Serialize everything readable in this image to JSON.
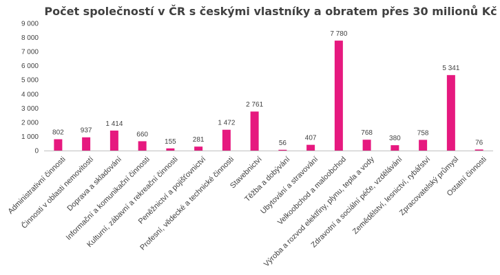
{
  "chart_data": {
    "type": "bar",
    "title": "Počet společností v ČR s českými vlastníky a obratem přes 30 milionů Kč",
    "xlabel": "",
    "ylabel": "",
    "ylim": [
      0,
      9000
    ],
    "yticks": [
      0,
      1000,
      2000,
      3000,
      4000,
      5000,
      6000,
      7000,
      8000,
      9000
    ],
    "ytick_labels": [
      "0",
      "1 000",
      "2 000",
      "3 000",
      "4 000",
      "5 000",
      "6 000",
      "7 000",
      "8 000",
      "9 000"
    ],
    "grid": false,
    "bar_color": "#e6197f",
    "categories": [
      "Administrativní činnosti",
      "Činnosti v oblasti nemovitostí",
      "Doprava a skladování",
      "Informační a komunikační činnosti",
      "Kulturní, zábavní a rekreační činnosti",
      "Peněžnictví a pojišťovnictví",
      "Profesní, vědecké a technické činnosti",
      "Stavebnictví",
      "Těžba a dobývání",
      "Ubytování a stravování",
      "Velkoobchod a maloobchod",
      "Výroba a rozvod elektřiny, plynu, tepla a vody",
      "Zdravotní a sociální péče, vzdělávání",
      "Zemědělství, lesnictví, rybářství",
      "Zpracovatelský průmysl",
      "Ostatní činnosti"
    ],
    "values": [
      802,
      937,
      1414,
      660,
      155,
      281,
      1472,
      2761,
      56,
      407,
      7780,
      768,
      380,
      758,
      5341,
      76
    ],
    "value_labels": [
      "802",
      "937",
      "1 414",
      "660",
      "155",
      "281",
      "1 472",
      "2 761",
      "56",
      "407",
      "7 780",
      "768",
      "380",
      "758",
      "5 341",
      "76"
    ]
  }
}
